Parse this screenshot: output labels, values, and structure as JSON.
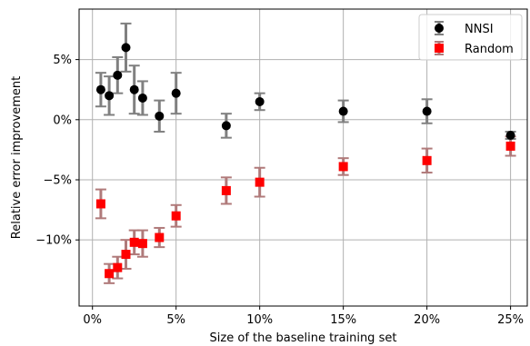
{
  "chart_data": {
    "type": "scatter",
    "title": "",
    "xlabel": "Size of the baseline training set",
    "ylabel": "Relative error improvement",
    "xlim": [
      -0.8,
      26
    ],
    "ylim": [
      -15.5,
      9.2
    ],
    "x_ticks": [
      0,
      5,
      10,
      15,
      20,
      25
    ],
    "x_tick_labels": [
      "0%",
      "5%",
      "10%",
      "15%",
      "20%",
      "25%"
    ],
    "y_ticks": [
      5,
      0,
      -5,
      -10
    ],
    "y_tick_labels": [
      "5%",
      "0%",
      "−5%",
      "−10%"
    ],
    "grid": true,
    "legend_position": "top-right",
    "series": [
      {
        "name": "NNSI",
        "marker": "circle",
        "color": "#000000",
        "errorbar_color": "#808080",
        "x": [
          0.5,
          1,
          1.5,
          2,
          2.5,
          3,
          4,
          5,
          8,
          10,
          15,
          20,
          25
        ],
        "y": [
          2.5,
          2.0,
          3.7,
          6.0,
          2.5,
          1.8,
          0.3,
          2.2,
          -0.5,
          1.5,
          0.7,
          0.7,
          -1.3
        ],
        "err": [
          1.4,
          1.6,
          1.5,
          2.0,
          2.0,
          1.4,
          1.3,
          1.7,
          1.0,
          0.7,
          0.9,
          1.0,
          0.3
        ]
      },
      {
        "name": "Random",
        "marker": "square",
        "color": "#ff0000",
        "errorbar_color": "#b07a7a",
        "x": [
          0.5,
          1,
          1.5,
          2,
          2.5,
          3,
          4,
          5,
          8,
          10,
          15,
          20,
          25
        ],
        "y": [
          -7.0,
          -12.8,
          -12.3,
          -11.2,
          -10.2,
          -10.3,
          -9.8,
          -8.0,
          -5.9,
          -5.2,
          -3.9,
          -3.4,
          -2.2
        ],
        "err": [
          1.2,
          0.8,
          0.9,
          1.2,
          1.0,
          1.1,
          0.8,
          0.9,
          1.1,
          1.2,
          0.7,
          1.0,
          0.8
        ]
      }
    ]
  }
}
